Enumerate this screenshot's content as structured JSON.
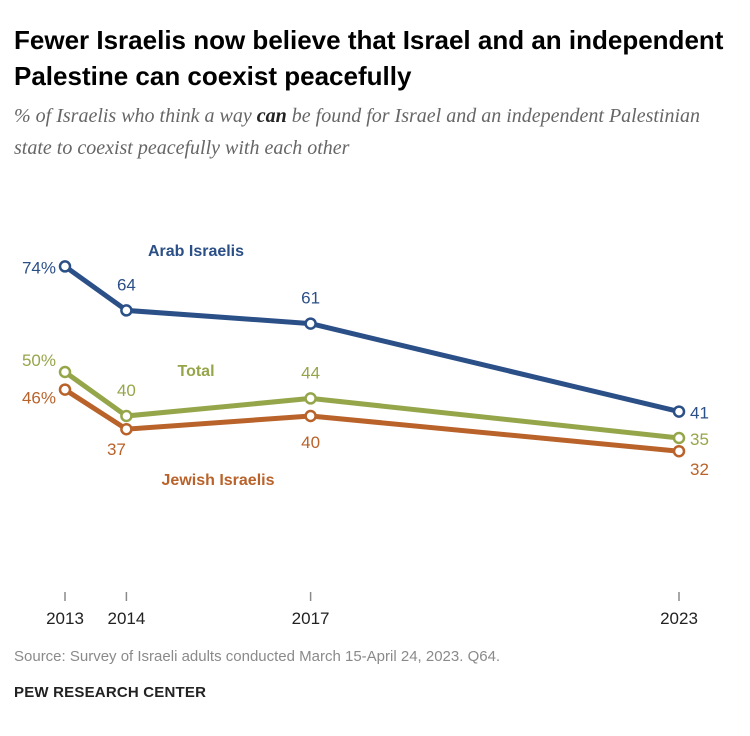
{
  "title": "Fewer Israelis now believe that Israel and an independent Palestine can coexist peacefully",
  "subtitle": {
    "before": "% of Israelis who think a way ",
    "emphasis": "can",
    "after": " be found for Israel and an independent Palestinian state to coexist peacefully with each other"
  },
  "source": "Source: Survey of Israeli adults conducted March 15-April 24, 2023. Q64.",
  "brand": "PEW RESEARCH CENTER",
  "chart_data": {
    "type": "line",
    "x": [
      2013,
      2014,
      2017,
      2023
    ],
    "x_tick_labels": [
      "2013",
      "2014",
      "2017",
      "2023"
    ],
    "xlim": [
      2013,
      2023
    ],
    "ylim": [
      0,
      100
    ],
    "grid": false,
    "legend": "direct labels on lines",
    "series": [
      {
        "name": "Arab Israelis",
        "color": "#2b4f87",
        "values": [
          74,
          64,
          61,
          41
        ],
        "value_labels": [
          "74%",
          "64",
          "61",
          "41"
        ]
      },
      {
        "name": "Total",
        "color": "#95a64a",
        "values": [
          50,
          40,
          44,
          35
        ],
        "value_labels": [
          "50%",
          "40",
          "44",
          "35"
        ]
      },
      {
        "name": "Jewish Israelis",
        "color": "#b9622a",
        "values": [
          46,
          37,
          40,
          32
        ],
        "value_labels": [
          "46%",
          "37",
          "40",
          "32"
        ]
      }
    ]
  }
}
